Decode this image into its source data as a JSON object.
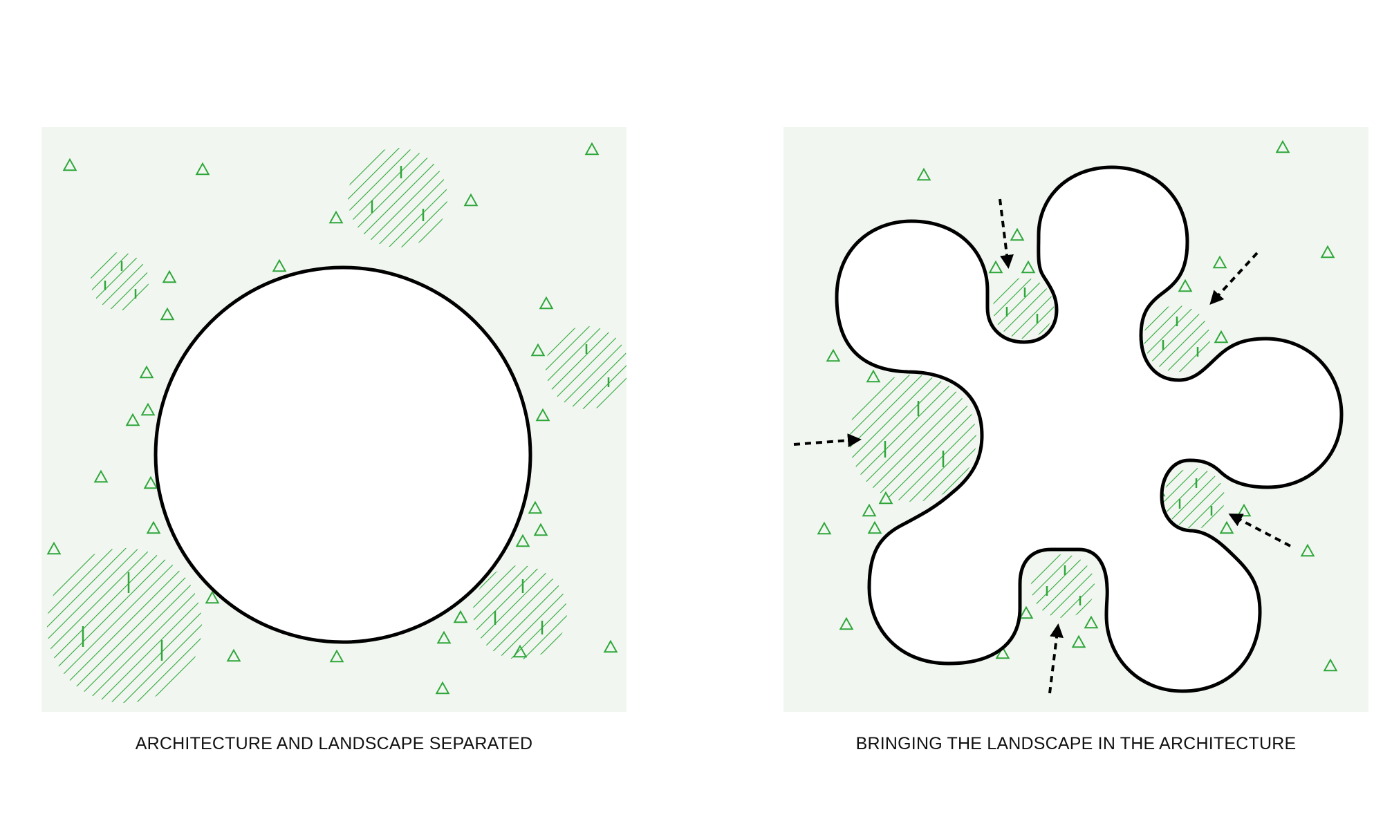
{
  "colors": {
    "panel_fill": "#f1f7f0",
    "landscape_green": "#2ea63a",
    "outline": "#000000",
    "page_background": "#ffffff"
  },
  "panels": {
    "left": {
      "caption": "ARCHITECTURE AND LANDSCAPE SEPARATED",
      "building_shape": "circle"
    },
    "right": {
      "caption": "BRINGING THE LANDSCAPE IN THE ARCHITECTURE",
      "building_shape": "six-lobed organic form with courtyards"
    }
  },
  "legend_icons": {
    "tree": "tree-triangle-icon",
    "planting": "hatched-planting-area",
    "flow": "dashed-arrow-icon"
  }
}
